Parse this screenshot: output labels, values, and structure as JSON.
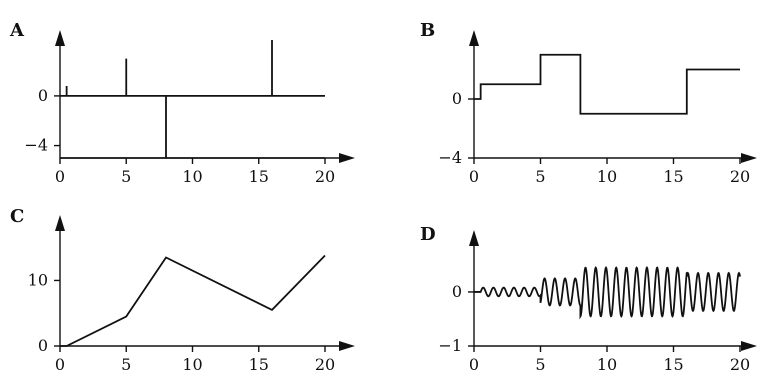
{
  "chart_data": [
    {
      "label": "A",
      "type": "line",
      "x": [
        0,
        0.5,
        0.5,
        0.5,
        5,
        5,
        5,
        8,
        8,
        8,
        16,
        16,
        16,
        20
      ],
      "y": [
        0,
        0,
        0.8,
        0,
        0,
        3,
        0,
        0,
        -5,
        0,
        0,
        4.5,
        0,
        0
      ],
      "xlim": [
        0,
        20
      ],
      "ylim": [
        -5,
        4.5
      ],
      "xticks": [
        "0",
        "5",
        "10",
        "15",
        "20"
      ],
      "yticks": [
        "0",
        "−4"
      ],
      "ytick_values": [
        0,
        -4
      ],
      "xlabel": "",
      "ylabel": "",
      "extra_hlines": [
        -5
      ]
    },
    {
      "label": "B",
      "type": "line",
      "x": [
        0,
        0.5,
        0.5,
        5,
        5,
        8,
        8,
        16,
        16,
        20
      ],
      "y": [
        0,
        0,
        1,
        1,
        3,
        3,
        -1,
        -1,
        2,
        2
      ],
      "xlim": [
        0,
        20
      ],
      "ylim": [
        -4,
        4
      ],
      "xticks": [
        "0",
        "5",
        "10",
        "15",
        "20"
      ],
      "yticks": [
        "0",
        "−4"
      ],
      "ytick_values": [
        0,
        -4
      ],
      "xlabel": "",
      "ylabel": ""
    },
    {
      "label": "C",
      "type": "line",
      "x": [
        0,
        0.5,
        5,
        8,
        16,
        20
      ],
      "y": [
        0,
        0,
        4.5,
        13.5,
        5.5,
        13.8
      ],
      "xlim": [
        0,
        20
      ],
      "ylim": [
        0,
        18
      ],
      "xticks": [
        "0",
        "5",
        "10",
        "15",
        "20"
      ],
      "yticks": [
        "0",
        "10"
      ],
      "ytick_values": [
        0,
        10
      ],
      "xlabel": "",
      "ylabel": ""
    },
    {
      "label": "D",
      "type": "line",
      "signal": {
        "cycles_per_unit": 1.3,
        "segments": [
          {
            "x_start": 0.5,
            "x_end": 5,
            "amplitude": 0.08
          },
          {
            "x_start": 5,
            "x_end": 8,
            "amplitude": 0.25
          },
          {
            "x_start": 8,
            "x_end": 16,
            "amplitude": 0.45
          },
          {
            "x_start": 16,
            "x_end": 20,
            "amplitude": 0.35
          }
        ]
      },
      "xlim": [
        0,
        20
      ],
      "ylim": [
        -1,
        0.85
      ],
      "xticks": [
        "0",
        "5",
        "10",
        "15",
        "20"
      ],
      "yticks": [
        "0",
        "−1"
      ],
      "ytick_values": [
        0,
        -1
      ],
      "xlabel": "",
      "ylabel": ""
    }
  ]
}
